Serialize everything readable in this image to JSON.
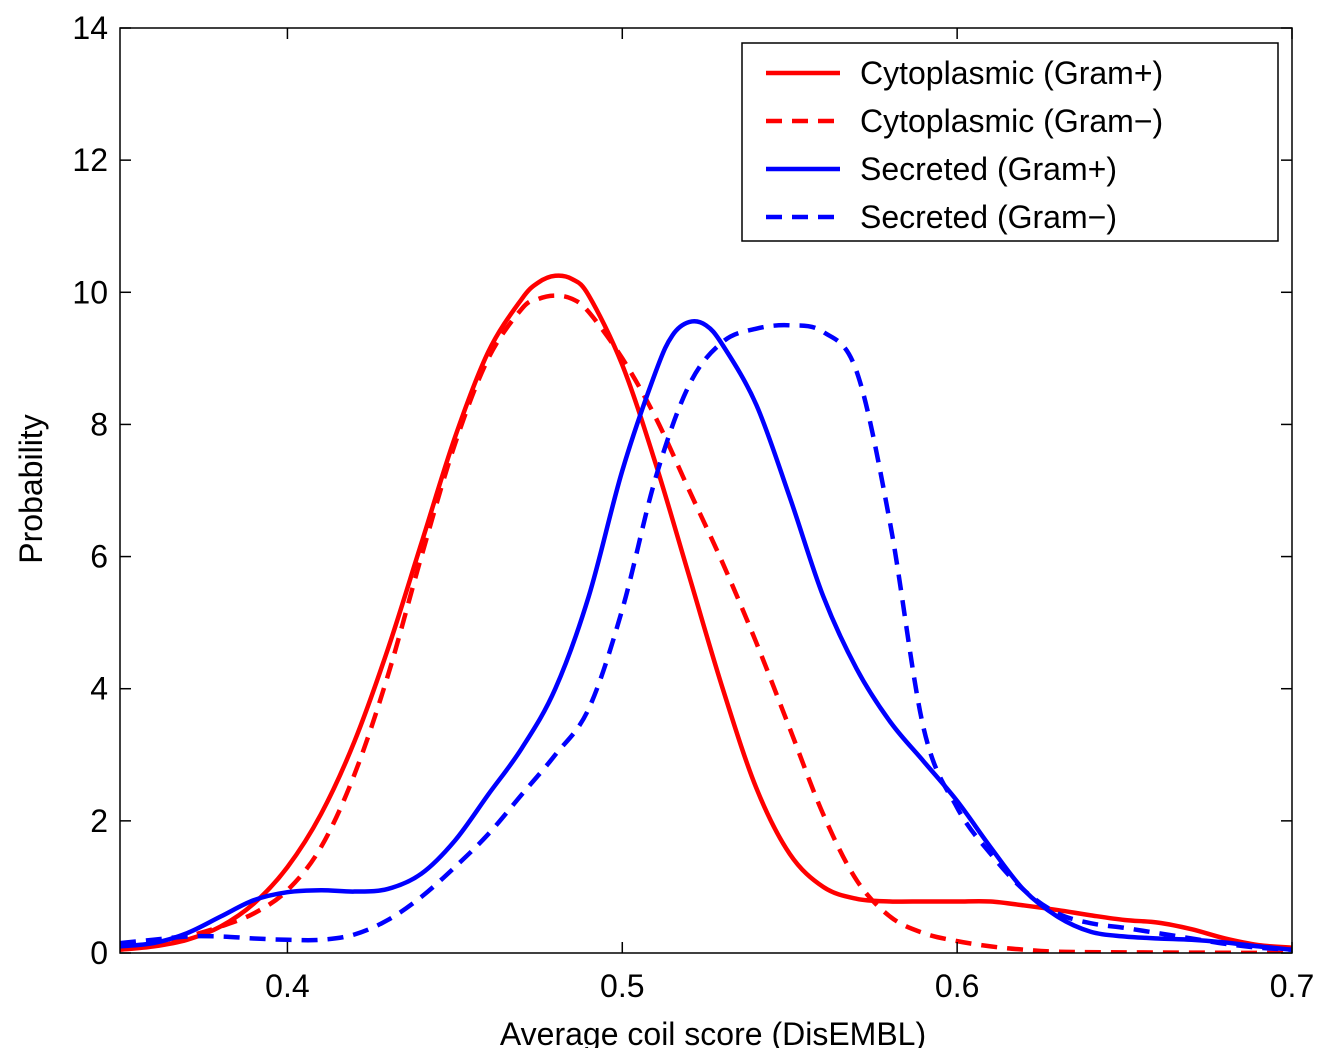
{
  "chart_data": {
    "type": "line",
    "title": "",
    "xlabel": "Average coil score (DisEMBL)",
    "ylabel": "Probability",
    "xlim": [
      0.35,
      0.7
    ],
    "ylim": [
      0,
      14
    ],
    "xticks": [
      0.4,
      0.5,
      0.6,
      0.7
    ],
    "xtick_labels": [
      "0.4",
      "0.5",
      "0.6",
      "0.7"
    ],
    "yticks": [
      0,
      2,
      4,
      6,
      8,
      10,
      12,
      14
    ],
    "ytick_labels": [
      "0",
      "2",
      "4",
      "6",
      "8",
      "10",
      "12",
      "14"
    ],
    "grid": false,
    "legend_position": "top-right",
    "series": [
      {
        "name": "Cytoplasmic (Gram+)",
        "color": "#ff0000",
        "dash": "solid",
        "x": [
          0.35,
          0.36,
          0.37,
          0.38,
          0.39,
          0.4,
          0.41,
          0.42,
          0.43,
          0.44,
          0.45,
          0.46,
          0.47,
          0.475,
          0.48,
          0.485,
          0.49,
          0.5,
          0.51,
          0.52,
          0.53,
          0.54,
          0.55,
          0.56,
          0.57,
          0.58,
          0.59,
          0.6,
          0.61,
          0.62,
          0.63,
          0.64,
          0.65,
          0.66,
          0.67,
          0.68,
          0.69,
          0.7
        ],
        "y": [
          0.05,
          0.1,
          0.2,
          0.4,
          0.75,
          1.3,
          2.1,
          3.2,
          4.6,
          6.2,
          7.8,
          9.1,
          9.9,
          10.15,
          10.25,
          10.2,
          9.95,
          8.9,
          7.4,
          5.7,
          4.0,
          2.5,
          1.5,
          1.0,
          0.82,
          0.78,
          0.78,
          0.78,
          0.78,
          0.72,
          0.65,
          0.57,
          0.5,
          0.46,
          0.36,
          0.22,
          0.12,
          0.08
        ]
      },
      {
        "name": "Cytoplasmic (Gram−)",
        "color": "#ff0000",
        "dash": "dashed",
        "x": [
          0.35,
          0.36,
          0.37,
          0.38,
          0.39,
          0.4,
          0.41,
          0.42,
          0.43,
          0.44,
          0.45,
          0.46,
          0.47,
          0.475,
          0.48,
          0.485,
          0.49,
          0.5,
          0.51,
          0.52,
          0.53,
          0.54,
          0.55,
          0.56,
          0.57,
          0.58,
          0.59,
          0.6,
          0.61,
          0.62,
          0.63,
          0.65,
          0.7
        ],
        "y": [
          0.1,
          0.15,
          0.25,
          0.4,
          0.6,
          0.95,
          1.6,
          2.7,
          4.2,
          6.0,
          7.7,
          9.0,
          9.75,
          9.9,
          9.95,
          9.9,
          9.7,
          9.0,
          8.1,
          7.0,
          5.9,
          4.7,
          3.4,
          2.1,
          1.1,
          0.55,
          0.3,
          0.18,
          0.1,
          0.05,
          0.02,
          0.01,
          0.0
        ]
      },
      {
        "name": "Secreted (Gram+)",
        "color": "#0000ff",
        "dash": "solid",
        "x": [
          0.35,
          0.36,
          0.37,
          0.38,
          0.39,
          0.4,
          0.41,
          0.42,
          0.43,
          0.44,
          0.45,
          0.46,
          0.47,
          0.48,
          0.49,
          0.5,
          0.51,
          0.515,
          0.52,
          0.525,
          0.53,
          0.54,
          0.55,
          0.56,
          0.57,
          0.58,
          0.59,
          0.6,
          0.61,
          0.62,
          0.63,
          0.64,
          0.65,
          0.66,
          0.67,
          0.68,
          0.69,
          0.7
        ],
        "y": [
          0.1,
          0.15,
          0.3,
          0.55,
          0.8,
          0.92,
          0.95,
          0.93,
          0.97,
          1.2,
          1.7,
          2.4,
          3.1,
          4.0,
          5.4,
          7.3,
          8.8,
          9.35,
          9.55,
          9.5,
          9.2,
          8.3,
          6.9,
          5.4,
          4.3,
          3.5,
          2.9,
          2.3,
          1.6,
          0.95,
          0.55,
          0.32,
          0.25,
          0.22,
          0.2,
          0.16,
          0.1,
          0.05
        ]
      },
      {
        "name": "Secreted (Gram−)",
        "color": "#0000ff",
        "dash": "dashed",
        "x": [
          0.35,
          0.36,
          0.37,
          0.38,
          0.39,
          0.4,
          0.41,
          0.42,
          0.43,
          0.44,
          0.45,
          0.46,
          0.47,
          0.48,
          0.49,
          0.5,
          0.51,
          0.52,
          0.53,
          0.54,
          0.55,
          0.56,
          0.57,
          0.58,
          0.59,
          0.6,
          0.61,
          0.62,
          0.63,
          0.64,
          0.65,
          0.66,
          0.67,
          0.68,
          0.69,
          0.7
        ],
        "y": [
          0.15,
          0.2,
          0.25,
          0.25,
          0.22,
          0.2,
          0.2,
          0.28,
          0.5,
          0.85,
          1.3,
          1.8,
          2.4,
          3.0,
          3.7,
          5.2,
          7.2,
          8.6,
          9.25,
          9.45,
          9.5,
          9.4,
          8.8,
          6.5,
          3.4,
          2.2,
          1.5,
          0.95,
          0.6,
          0.45,
          0.38,
          0.3,
          0.22,
          0.14,
          0.08,
          0.05
        ]
      }
    ]
  }
}
